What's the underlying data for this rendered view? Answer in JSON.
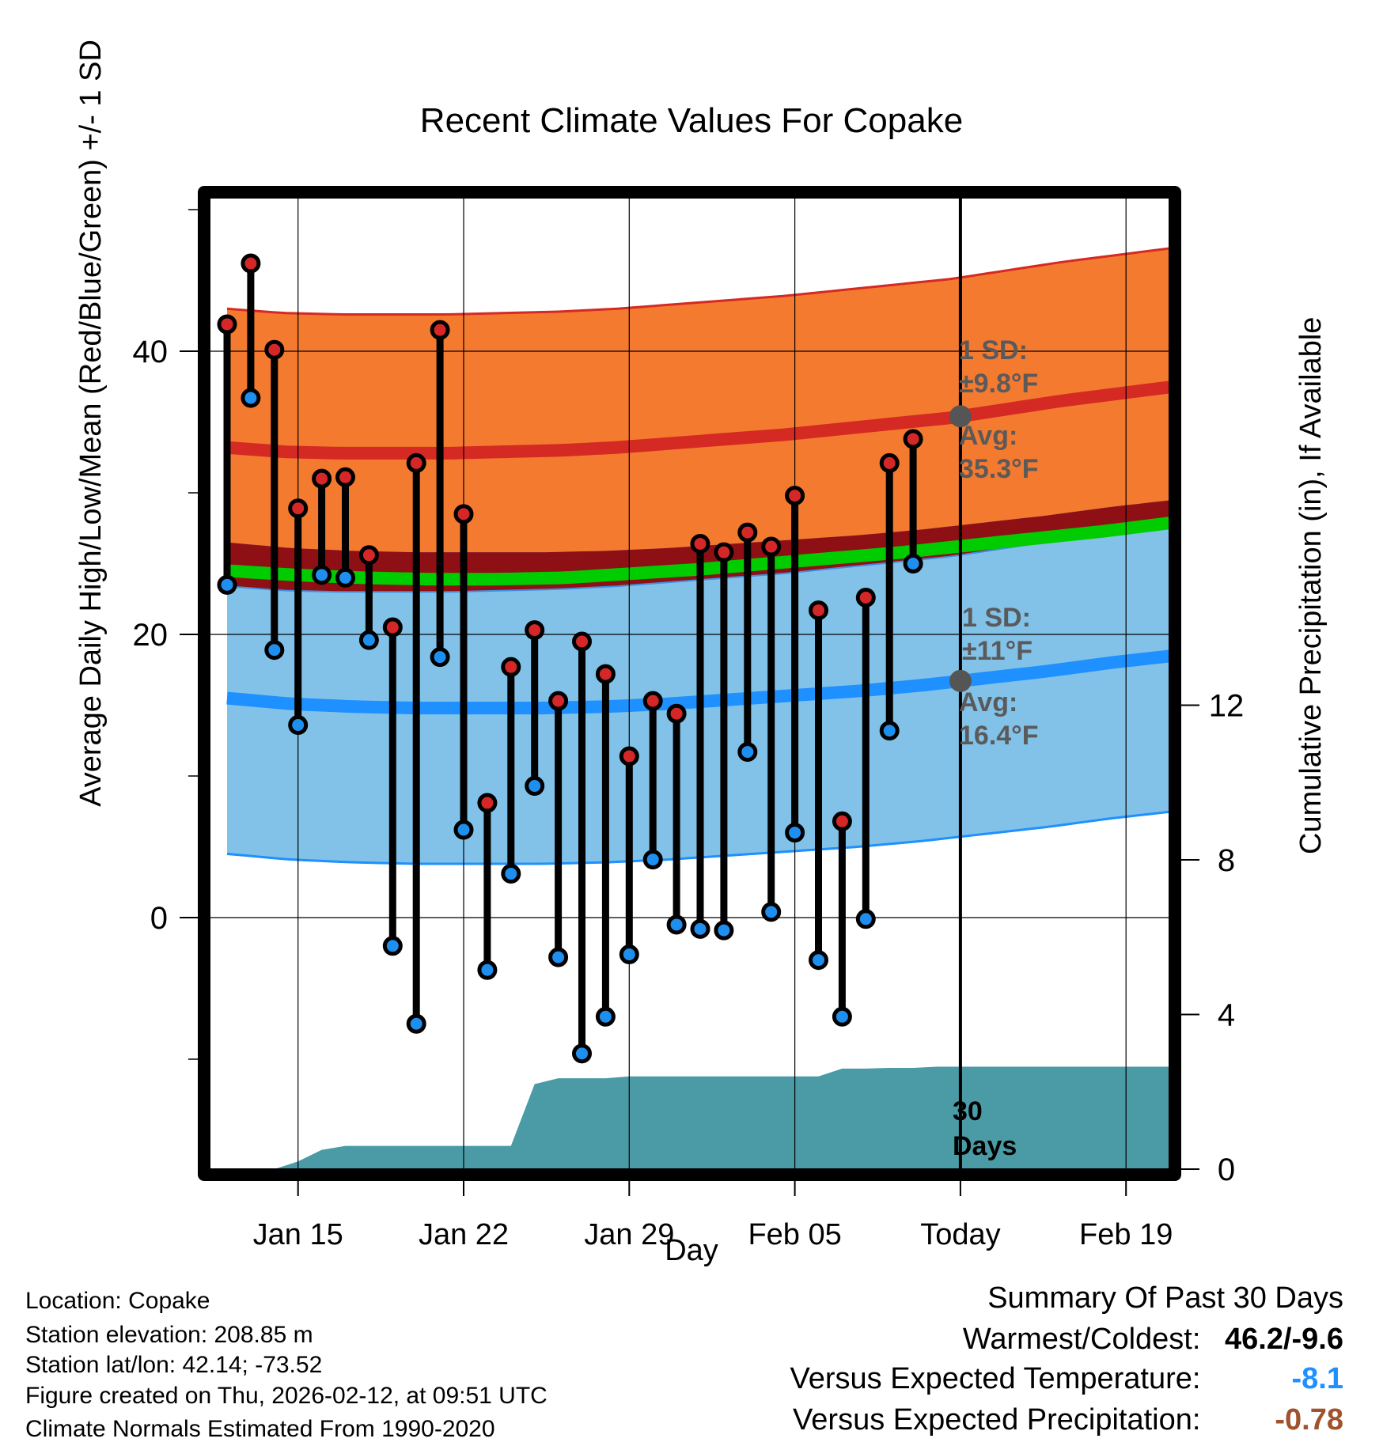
{
  "chart_data": {
    "type": "line",
    "title": "Recent Climate Values For Copake",
    "xlabel": "Day",
    "ylabel": "Average Daily High/Low/Mean (Red/Blue/Green) +/- 1 SD",
    "ylabel_right": "Cumulative Precipitation (in), If Available",
    "x_tick_labels": [
      "Jan 15",
      "Jan 22",
      "Jan 29",
      "Feb 05",
      "Today",
      "Feb 19"
    ],
    "x_tick_day_index": [
      3,
      10,
      17,
      24,
      31,
      38
    ],
    "y_ticks": [
      0,
      20,
      40
    ],
    "y_range": [
      -17,
      51
    ],
    "precip_ticks": [
      0,
      4,
      8,
      12
    ],
    "precip_range": [
      0,
      25
    ],
    "daily_highs": [
      41.9,
      46.2,
      40.1,
      28.9,
      31.0,
      31.1,
      25.6,
      20.5,
      32.1,
      41.5,
      28.5,
      8.1,
      17.7,
      20.3,
      15.3,
      19.5,
      17.2,
      11.4,
      15.3,
      14.4,
      26.4,
      25.8,
      27.2,
      26.2,
      29.8,
      21.7,
      6.8,
      22.6,
      32.1,
      33.8
    ],
    "daily_lows": [
      23.5,
      36.7,
      18.9,
      13.6,
      24.2,
      24.0,
      19.6,
      -2.0,
      -7.5,
      18.4,
      6.2,
      -3.7,
      3.1,
      9.3,
      -2.8,
      -9.6,
      -7.0,
      -2.6,
      4.1,
      -0.5,
      -0.8,
      -0.9,
      11.7,
      0.4,
      6.0,
      -3.0,
      -7.0,
      -0.1,
      13.2,
      25.0
    ],
    "normal_high_avg": [
      33.2,
      32.9,
      32.8,
      32.8,
      32.8,
      32.9,
      33.0,
      33.2,
      33.5,
      33.8,
      34.1,
      34.5,
      34.9,
      35.3,
      35.9,
      36.5,
      37.0,
      37.5
    ],
    "normal_high_sd": 9.8,
    "normal_low_avg": [
      15.5,
      15.1,
      14.9,
      14.8,
      14.8,
      14.8,
      14.9,
      15.1,
      15.4,
      15.7,
      16.0,
      16.4,
      16.9,
      17.4,
      18.0,
      18.5
    ],
    "normal_low_sd": 11,
    "normal_mean": [
      24.5,
      24.2,
      24.0,
      23.9,
      23.9,
      24.0,
      24.3,
      24.6,
      25.0,
      25.4,
      25.8,
      26.3,
      26.8,
      27.3,
      27.9
    ],
    "precip_cumulative": [
      0,
      0,
      0,
      0.2,
      0.5,
      0.6,
      0.6,
      0.6,
      0.6,
      0.6,
      0.6,
      0.6,
      0.6,
      2.2,
      2.35,
      2.35,
      2.35,
      2.4,
      2.4,
      2.4,
      2.4,
      2.4,
      2.4,
      2.4,
      2.4,
      2.4,
      2.6,
      2.6,
      2.62,
      2.62,
      2.65,
      2.65,
      2.65,
      2.65,
      2.65,
      2.65,
      2.65,
      2.65,
      2.65,
      2.65,
      2.65
    ]
  },
  "annotations": {
    "high_sd_label": "1 SD:",
    "high_sd_value": "±9.8°F",
    "high_avg_label": "Avg:",
    "high_avg_value": "35.3°F",
    "low_sd_label": "1 SD:",
    "low_sd_value": "±11°F",
    "low_avg_label": "Avg:",
    "low_avg_value": "16.4°F",
    "days_number": "30",
    "days_word": "Days"
  },
  "footer": {
    "location": "Location: Copake",
    "elevation": "Station elevation: 208.85 m",
    "latlon": "Station lat/lon: 42.14; -73.52",
    "created": "Figure created on Thu, 2026-02-12, at 09:51 UTC",
    "normals": "Climate Normals Estimated From 1990-2020"
  },
  "summary": {
    "heading": "Summary Of Past 30 Days",
    "warm_cold_label": "Warmest/Coldest:",
    "warm_cold_value": "46.2/-9.6",
    "temp_label": "Versus Expected Temperature:",
    "temp_value": "-8.1",
    "temp_color": "#1e90ff",
    "precip_label": "Versus Expected Precipitation:",
    "precip_value": "-0.78",
    "precip_color": "#a0522d"
  },
  "colors": {
    "high_band": "#f47a30",
    "high_line": "#d42a23",
    "overlap": "#8e1015",
    "mean_line": "#00cc00",
    "low_band": "#82c2e8",
    "low_line": "#1e90ff",
    "precip": "#4a9ba5",
    "high_dot": "#d62728",
    "low_dot": "#1f8fef"
  }
}
